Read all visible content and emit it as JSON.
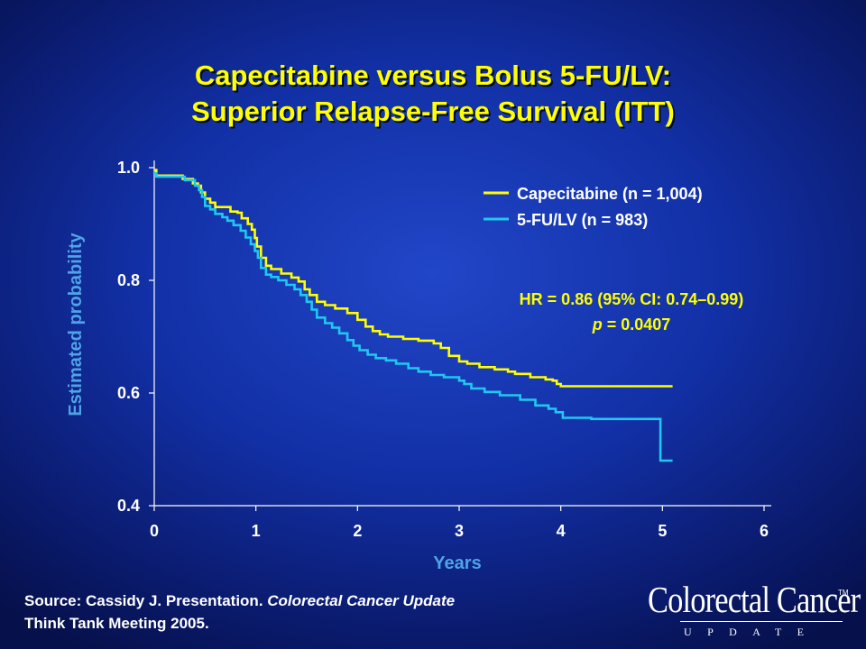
{
  "title": {
    "line1": "Capecitabine versus Bolus 5-FU/LV:",
    "line2": "Superior Relapse-Free Survival (ITT)"
  },
  "footer": {
    "source_prefix": "Source: Cassidy J. Presentation. ",
    "source_italic": "Colorectal Cancer Update",
    "source_line2": "Think Tank Meeting 2005."
  },
  "logo": {
    "main": "Colorectal Cancer",
    "tm": "TM",
    "sub": "UPDATE"
  },
  "colors": {
    "capecitabine": "#ffff00",
    "fu_lv": "#20c8f0",
    "title": "#ffff00",
    "ylabel": "#4fa3e6",
    "xlabel": "#4fa3e6"
  },
  "chart_data": {
    "type": "line",
    "step": true,
    "title": "",
    "xlabel": "Years",
    "ylabel": "Estimated probability",
    "xlim": [
      0,
      6
    ],
    "ylim": [
      0.4,
      1.0
    ],
    "xticks": [
      "0",
      "1",
      "2",
      "3",
      "4",
      "5",
      "6"
    ],
    "yticks": [
      "0.4",
      "0.6",
      "0.8",
      "1.0"
    ],
    "xtick_values": [
      0,
      1,
      2,
      3,
      4,
      5,
      6
    ],
    "ytick_values": [
      0.4,
      0.6,
      0.8,
      1.0
    ],
    "grid": false,
    "legend_position": "top-right",
    "annotation": {
      "hr": "HR = 0.86 (95% CI: 0.74–0.99)",
      "p_label": "p",
      "p_value": " = 0.0407"
    },
    "series": [
      {
        "name": "Capecitabine (n = 1,004)",
        "color": "#ffff00",
        "points": [
          [
            0,
            0.996
          ],
          [
            0.02,
            0.986
          ],
          [
            0.2,
            0.986
          ],
          [
            0.28,
            0.98
          ],
          [
            0.38,
            0.972
          ],
          [
            0.43,
            0.968
          ],
          [
            0.46,
            0.956
          ],
          [
            0.5,
            0.945
          ],
          [
            0.55,
            0.938
          ],
          [
            0.6,
            0.93
          ],
          [
            0.7,
            0.93
          ],
          [
            0.75,
            0.922
          ],
          [
            0.82,
            0.92
          ],
          [
            0.86,
            0.91
          ],
          [
            0.92,
            0.9
          ],
          [
            0.96,
            0.89
          ],
          [
            0.99,
            0.875
          ],
          [
            1.01,
            0.86
          ],
          [
            1.05,
            0.84
          ],
          [
            1.1,
            0.826
          ],
          [
            1.15,
            0.82
          ],
          [
            1.25,
            0.812
          ],
          [
            1.35,
            0.805
          ],
          [
            1.42,
            0.798
          ],
          [
            1.48,
            0.784
          ],
          [
            1.53,
            0.774
          ],
          [
            1.6,
            0.762
          ],
          [
            1.68,
            0.756
          ],
          [
            1.78,
            0.75
          ],
          [
            1.9,
            0.742
          ],
          [
            2.0,
            0.73
          ],
          [
            2.08,
            0.718
          ],
          [
            2.15,
            0.71
          ],
          [
            2.22,
            0.704
          ],
          [
            2.3,
            0.7
          ],
          [
            2.45,
            0.696
          ],
          [
            2.6,
            0.693
          ],
          [
            2.75,
            0.688
          ],
          [
            2.82,
            0.68
          ],
          [
            2.9,
            0.666
          ],
          [
            3.0,
            0.656
          ],
          [
            3.08,
            0.652
          ],
          [
            3.2,
            0.646
          ],
          [
            3.35,
            0.642
          ],
          [
            3.48,
            0.638
          ],
          [
            3.55,
            0.634
          ],
          [
            3.7,
            0.628
          ],
          [
            3.85,
            0.624
          ],
          [
            3.92,
            0.622
          ],
          [
            3.96,
            0.616
          ],
          [
            4.0,
            0.612
          ],
          [
            5.1,
            0.612
          ]
        ]
      },
      {
        "name": "5-FU/LV (n = 983)",
        "color": "#20c8f0",
        "points": [
          [
            0,
            0.99
          ],
          [
            0.02,
            0.984
          ],
          [
            0.22,
            0.984
          ],
          [
            0.3,
            0.978
          ],
          [
            0.4,
            0.968
          ],
          [
            0.44,
            0.96
          ],
          [
            0.47,
            0.948
          ],
          [
            0.5,
            0.932
          ],
          [
            0.55,
            0.926
          ],
          [
            0.6,
            0.918
          ],
          [
            0.67,
            0.912
          ],
          [
            0.72,
            0.906
          ],
          [
            0.78,
            0.898
          ],
          [
            0.85,
            0.888
          ],
          [
            0.9,
            0.876
          ],
          [
            0.95,
            0.864
          ],
          [
            0.99,
            0.852
          ],
          [
            1.02,
            0.84
          ],
          [
            1.05,
            0.822
          ],
          [
            1.1,
            0.81
          ],
          [
            1.15,
            0.806
          ],
          [
            1.22,
            0.8
          ],
          [
            1.3,
            0.792
          ],
          [
            1.38,
            0.784
          ],
          [
            1.44,
            0.774
          ],
          [
            1.5,
            0.762
          ],
          [
            1.55,
            0.748
          ],
          [
            1.6,
            0.734
          ],
          [
            1.68,
            0.724
          ],
          [
            1.75,
            0.716
          ],
          [
            1.82,
            0.706
          ],
          [
            1.9,
            0.694
          ],
          [
            1.96,
            0.684
          ],
          [
            2.02,
            0.676
          ],
          [
            2.1,
            0.668
          ],
          [
            2.18,
            0.662
          ],
          [
            2.28,
            0.658
          ],
          [
            2.38,
            0.652
          ],
          [
            2.5,
            0.644
          ],
          [
            2.6,
            0.638
          ],
          [
            2.72,
            0.632
          ],
          [
            2.85,
            0.628
          ],
          [
            3.0,
            0.622
          ],
          [
            3.05,
            0.616
          ],
          [
            3.12,
            0.608
          ],
          [
            3.25,
            0.602
          ],
          [
            3.4,
            0.596
          ],
          [
            3.6,
            0.588
          ],
          [
            3.75,
            0.578
          ],
          [
            3.88,
            0.572
          ],
          [
            3.95,
            0.566
          ],
          [
            4.02,
            0.556
          ],
          [
            4.3,
            0.554
          ],
          [
            4.97,
            0.554
          ],
          [
            4.98,
            0.48
          ],
          [
            5.1,
            0.48
          ]
        ]
      }
    ]
  }
}
